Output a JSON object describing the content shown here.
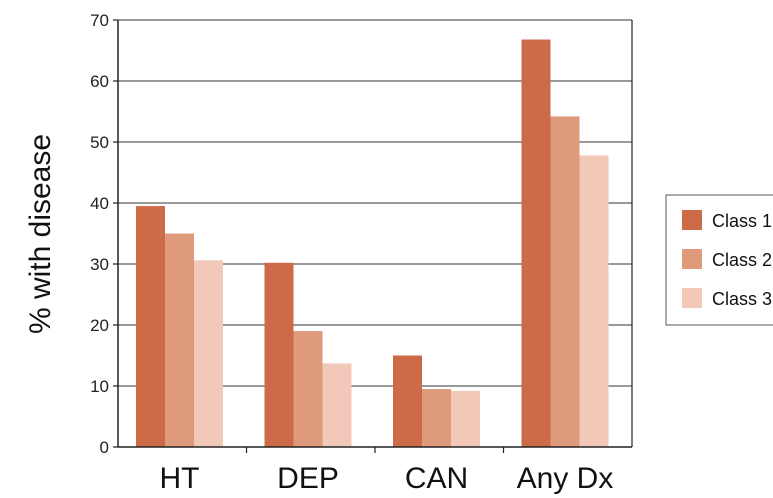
{
  "chart_data": {
    "type": "bar",
    "title": "",
    "xlabel": "",
    "ylabel": "% with disease",
    "ylim": [
      0,
      70
    ],
    "yticks": [
      0,
      10,
      20,
      30,
      40,
      50,
      60,
      70
    ],
    "grid": true,
    "legend_position": "right",
    "categories": [
      "HT",
      "DEP",
      "CAN",
      "Any Dx"
    ],
    "series": [
      {
        "name": "Class 1",
        "color": "#cd6a47",
        "values": [
          39.5,
          30.2,
          15.0,
          66.8
        ]
      },
      {
        "name": "Class 2",
        "color": "#df9a7c",
        "values": [
          35.0,
          19.0,
          9.5,
          54.2
        ]
      },
      {
        "name": "Class 3",
        "color": "#f2c9b8",
        "values": [
          30.6,
          13.7,
          9.2,
          47.8
        ]
      }
    ]
  }
}
